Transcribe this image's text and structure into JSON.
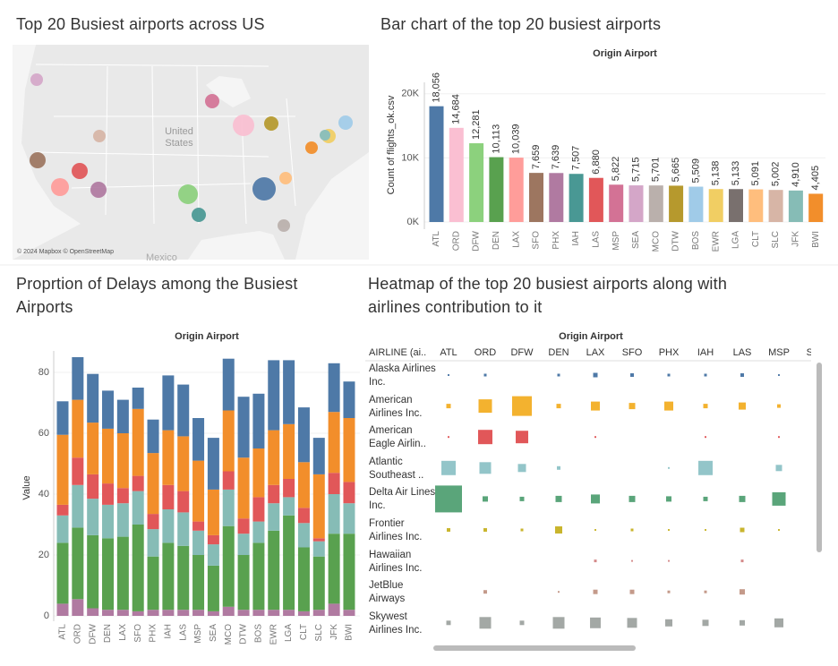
{
  "chart_data": [
    {
      "type": "map",
      "title": "Top 20 Busiest airports across US",
      "labels": [
        "United States",
        "Mexico"
      ],
      "attribution": "© 2024 Mapbox © OpenStreetMap"
    },
    {
      "type": "bar",
      "title": "Bar chart of the top 20 busiest airports",
      "header": "Origin Airport",
      "y_label": "Count of flights_ok.csv",
      "categories": [
        "ATL",
        "ORD",
        "DFW",
        "DEN",
        "LAX",
        "SFO",
        "PHX",
        "IAH",
        "LAS",
        "MSP",
        "SEA",
        "MCO",
        "DTW",
        "BOS",
        "EWR",
        "LGA",
        "CLT",
        "SLC",
        "JFK",
        "BWI"
      ],
      "values": [
        18056,
        14684,
        12281,
        10113,
        10039,
        7659,
        7639,
        7507,
        6880,
        5822,
        5715,
        5701,
        5665,
        5509,
        5138,
        5133,
        5091,
        5002,
        4910,
        4405
      ],
      "value_labels": [
        "18,056",
        "14,684",
        "12,281",
        "10,113",
        "10,039",
        "7,659",
        "7,639",
        "7,507",
        "6,880",
        "5,822",
        "5,715",
        "5,701",
        "5,665",
        "5,509",
        "5,138",
        "5,133",
        "5,091",
        "5,002",
        "4,910",
        "4,405"
      ],
      "colors": [
        "#4e79a7",
        "#fabfd2",
        "#8cd17d",
        "#59a14f",
        "#ff9d9a",
        "#9d7660",
        "#b07aa1",
        "#499894",
        "#e15759",
        "#d37295",
        "#d4a6c8",
        "#bab0ac",
        "#b6992d",
        "#a0cbe8",
        "#f1ce63",
        "#79706e",
        "#ffbe7d",
        "#d7b5a6",
        "#86bcb6",
        "#f28e2b"
      ],
      "ylim": [
        0,
        21500
      ],
      "yticks": [
        {
          "value": 0,
          "label": "0K"
        },
        {
          "value": 10000,
          "label": "10K"
        },
        {
          "value": 20000,
          "label": "20K"
        }
      ],
      "grid": true
    },
    {
      "type": "stacked_bar",
      "title": "Proprtion of Delays among the Busiest Airports",
      "header": "Origin Airport",
      "y_label": "Value",
      "categories": [
        "ATL",
        "ORD",
        "DFW",
        "DEN",
        "LAX",
        "SFO",
        "PHX",
        "IAH",
        "LAS",
        "MSP",
        "SEA",
        "MCO",
        "DTW",
        "BOS",
        "EWR",
        "LGA",
        "CLT",
        "SLC",
        "JFK",
        "BWI"
      ],
      "series": [
        {
          "color": "#b07aa1",
          "values": [
            4,
            5.5,
            2.5,
            2,
            2,
            1.5,
            2,
            2,
            2,
            2,
            1.5,
            3,
            2,
            2,
            2,
            2,
            1.5,
            2,
            4,
            2
          ]
        },
        {
          "color": "#59a14f",
          "values": [
            20,
            23.5,
            24,
            23.5,
            24,
            28.5,
            17.5,
            22,
            21,
            18,
            15,
            26.5,
            18,
            22,
            26,
            31,
            21,
            17.5,
            23,
            25
          ]
        },
        {
          "color": "#86bcb6",
          "values": [
            9,
            14,
            12,
            11,
            11,
            11,
            9,
            11,
            11,
            8,
            7,
            12,
            7,
            7,
            9,
            6,
            8,
            5,
            13,
            10
          ]
        },
        {
          "color": "#e15759",
          "values": [
            3.5,
            9,
            8,
            7,
            5,
            5,
            5,
            8,
            7,
            3,
            3,
            6,
            5,
            8,
            6,
            6,
            5,
            1,
            7,
            7
          ]
        },
        {
          "color": "#f28e2b",
          "values": [
            23,
            19,
            17,
            18,
            18,
            22,
            20,
            18,
            18,
            20,
            15,
            20,
            20,
            16,
            18,
            18,
            15,
            21,
            20,
            21
          ]
        },
        {
          "color": "#4e79a7",
          "values": [
            11,
            14,
            16,
            12.5,
            11,
            7,
            11,
            18,
            17,
            14,
            17,
            17,
            20,
            18,
            23,
            21,
            18,
            12,
            16,
            12
          ]
        }
      ],
      "ylim": [
        0,
        86
      ],
      "yticks": [
        0,
        20,
        40,
        60,
        80
      ],
      "grid": true
    },
    {
      "type": "heatmap",
      "title": "Heatmap of the top 20 busiest airports along with airlines contribution to it",
      "header": "Origin Airport",
      "row_header": "AIRLINE (ai..",
      "columns": [
        "ATL",
        "ORD",
        "DFW",
        "DEN",
        "LAX",
        "SFO",
        "PHX",
        "IAH",
        "LAS",
        "MSP",
        "SE.."
      ],
      "rows": [
        "Alaska Airlines Inc.",
        "American Airlines Inc.",
        "American Eagle Airlin..",
        "Atlantic Southeast ..",
        "Delta Air Lines Inc.",
        "Frontier Airlines Inc.",
        "Hawaiian Airlines Inc.",
        "JetBlue Airways",
        "Skywest Airlines Inc."
      ],
      "colors": [
        "#4e79a7",
        "#f3b22f",
        "#e15759",
        "#93c5c9",
        "#5aa57a",
        "#c9b52d",
        "#d48a8a",
        "#c49a8a",
        "#a3a8a5"
      ],
      "values": [
        [
          50,
          120,
          null,
          120,
          330,
          210,
          120,
          120,
          210,
          50,
          1330
        ],
        [
          330,
          3000,
          6450,
          330,
          1330,
          650,
          1330,
          330,
          850,
          210,
          210
        ],
        [
          50,
          3400,
          2600,
          null,
          50,
          null,
          null,
          50,
          null,
          50,
          null
        ],
        [
          3400,
          2250,
          1080,
          210,
          null,
          null,
          50,
          3400,
          null,
          650,
          120
        ],
        [
          12000,
          480,
          330,
          650,
          1330,
          650,
          480,
          330,
          650,
          3000,
          850
        ],
        [
          210,
          210,
          120,
          850,
          50,
          120,
          50,
          50,
          330,
          50,
          120
        ],
        [
          null,
          null,
          null,
          null,
          120,
          50,
          50,
          null,
          120,
          null,
          120
        ],
        [
          null,
          210,
          null,
          50,
          330,
          330,
          120,
          120,
          480,
          null,
          210
        ],
        [
          330,
          2250,
          330,
          2250,
          1900,
          1600,
          850,
          650,
          480,
          1330,
          850
        ]
      ]
    }
  ]
}
